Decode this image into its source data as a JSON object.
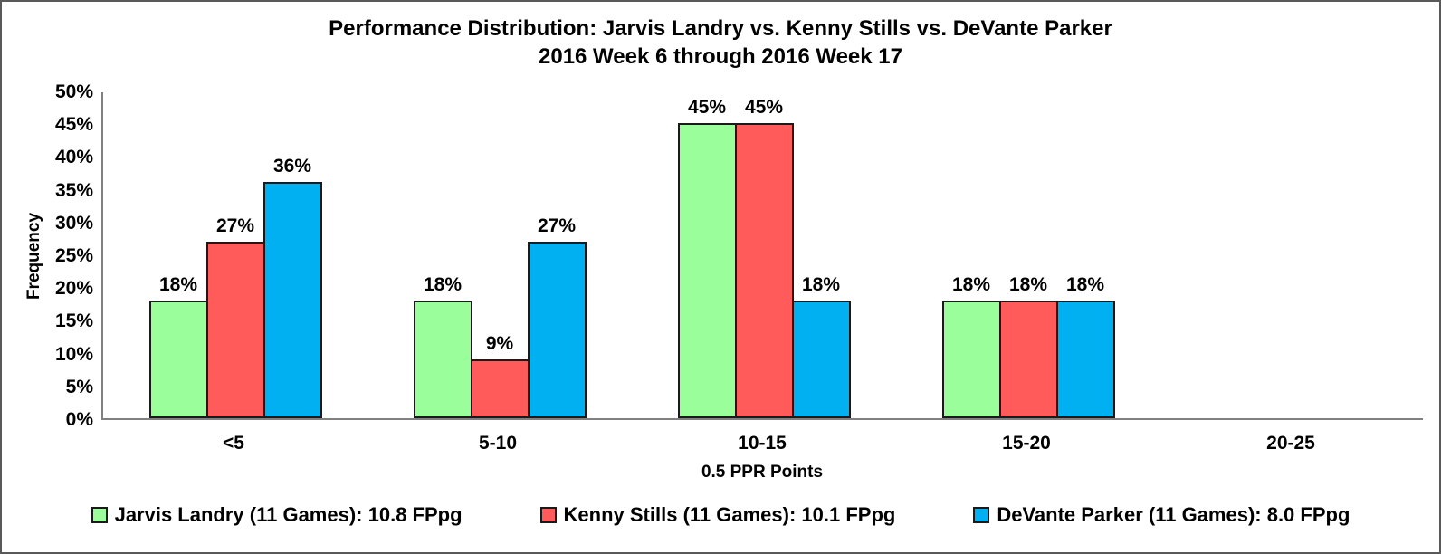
{
  "chart_data": {
    "type": "bar",
    "title": "Performance Distribution: Jarvis Landry vs. Kenny Stills vs. DeVante Parker",
    "subtitle": "2016 Week 6 through 2016 Week 17",
    "xlabel": "0.5 PPR Points",
    "ylabel": "Frequency",
    "categories": [
      "<5",
      "5-10",
      "10-15",
      "15-20",
      "20-25"
    ],
    "series": [
      {
        "name": "Jarvis Landry (11 Games): 10.8 FPpg",
        "color": "#9AFF9A",
        "values": [
          18,
          18,
          45,
          18,
          0
        ]
      },
      {
        "name": "Kenny Stills (11 Games): 10.1 FPpg",
        "color": "#FF5B5B",
        "values": [
          27,
          9,
          45,
          18,
          0
        ]
      },
      {
        "name": "DeVante Parker (11 Games): 8.0 FPpg",
        "color": "#00B0F0",
        "values": [
          36,
          27,
          18,
          18,
          0
        ]
      }
    ],
    "data_labels": [
      [
        "18%",
        "18%",
        "45%",
        "18%",
        ""
      ],
      [
        "27%",
        "9%",
        "45%",
        "18%",
        ""
      ],
      [
        "36%",
        "27%",
        "18%",
        "18%",
        ""
      ]
    ],
    "yticks": [
      0,
      5,
      10,
      15,
      20,
      25,
      30,
      35,
      40,
      45,
      50
    ],
    "ytick_labels": [
      "0%",
      "5%",
      "10%",
      "15%",
      "20%",
      "25%",
      "30%",
      "35%",
      "40%",
      "45%",
      "50%"
    ],
    "ylim": [
      0,
      50
    ],
    "grid": false,
    "legend_position": "bottom",
    "bar_border_color": "#1a1a1a",
    "axis_line_color": "#808080",
    "frame_border_color": "#595959"
  }
}
